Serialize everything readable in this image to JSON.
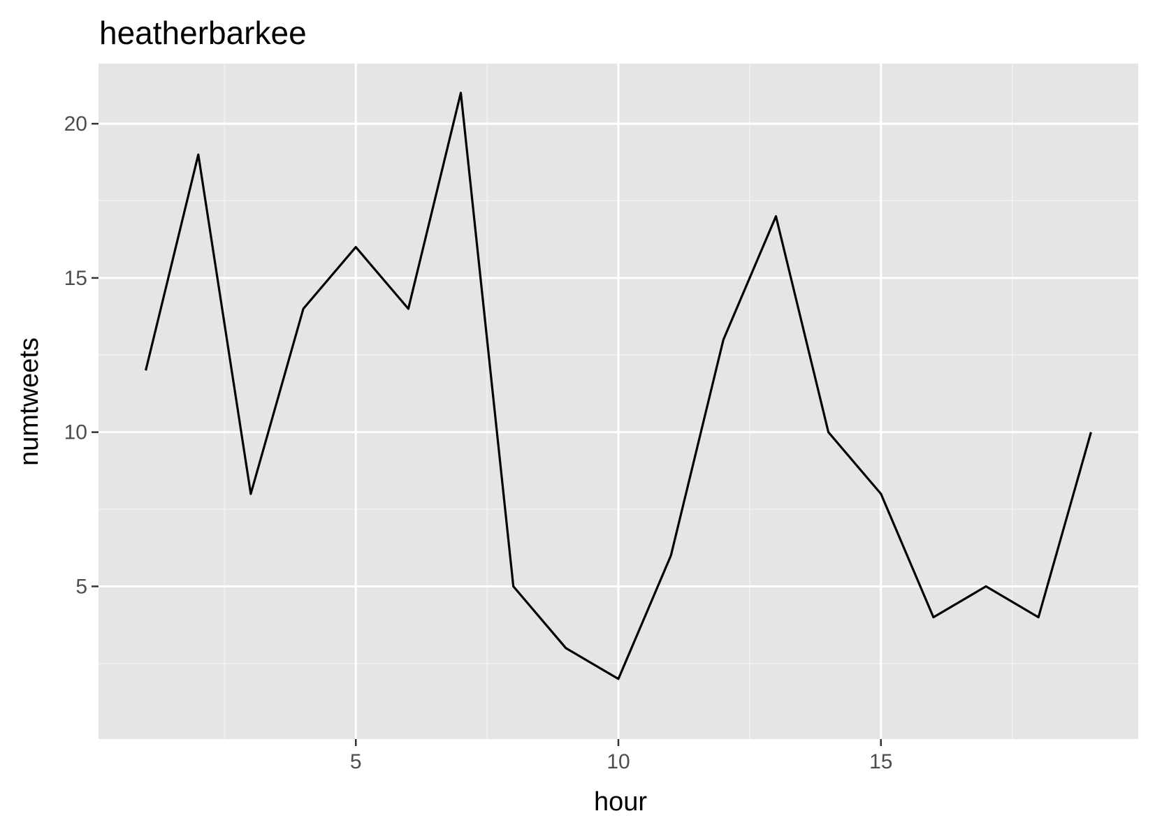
{
  "chart_data": {
    "type": "line",
    "title": "heatherbarkee",
    "xlabel": "hour",
    "ylabel": "numtweets",
    "x": [
      1,
      2,
      3,
      4,
      5,
      6,
      7,
      8,
      9,
      10,
      11,
      12,
      13,
      14,
      15,
      16,
      17,
      18,
      19
    ],
    "series": [
      {
        "values": [
          12,
          19,
          8,
          14,
          16,
          14,
          21,
          5,
          3,
          2,
          6,
          13,
          17,
          10,
          8,
          4,
          5,
          4,
          10
        ]
      }
    ],
    "x_ticks": [
      "5",
      "10",
      "15"
    ],
    "y_ticks": [
      "5",
      "10",
      "15",
      "20"
    ],
    "xlim": [
      0.1,
      19.9
    ],
    "ylim": [
      0.05,
      21.95
    ],
    "grid": true,
    "colors": {
      "panel_background": "#e5e5e5",
      "grid_major": "#ffffff",
      "grid_minor": "#f2f2f2",
      "line": "#000000",
      "tick": "#333333"
    }
  }
}
